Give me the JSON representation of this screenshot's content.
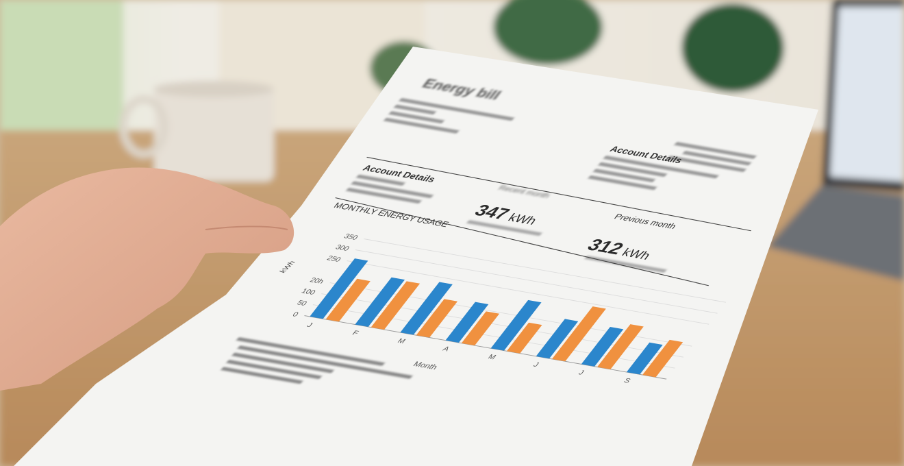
{
  "document": {
    "title": "Energy bill",
    "account_details_right": "Account Details",
    "account_details_left": "Account Details",
    "recent": {
      "label": "Recent month",
      "value": "347",
      "unit": "kWh"
    },
    "previous": {
      "label": "Previous month",
      "value": "312",
      "unit": "kWh"
    }
  },
  "chart_data": {
    "type": "bar",
    "title": "MONTHLY ENERGY USAGE",
    "xlabel": "Month",
    "ylabel": "kWh",
    "ylim": [
      0,
      350
    ],
    "yticks": [
      "0",
      "50",
      "100",
      "20h",
      "250",
      "300",
      "350"
    ],
    "ytick_values": [
      0,
      50,
      100,
      150,
      250,
      300,
      350
    ],
    "categories": [
      "J",
      "F",
      "M",
      "A",
      "M",
      "J",
      "J",
      "S"
    ],
    "series": [
      {
        "values": [
          265,
          215,
          230,
          175,
          220,
          170,
          170,
          135
        ],
        "color": "#2b86cc"
      },
      {
        "values": [
          185,
          210,
          165,
          145,
          130,
          240,
          195,
          160
        ],
        "color": "#f0913f"
      }
    ],
    "grid": true
  }
}
